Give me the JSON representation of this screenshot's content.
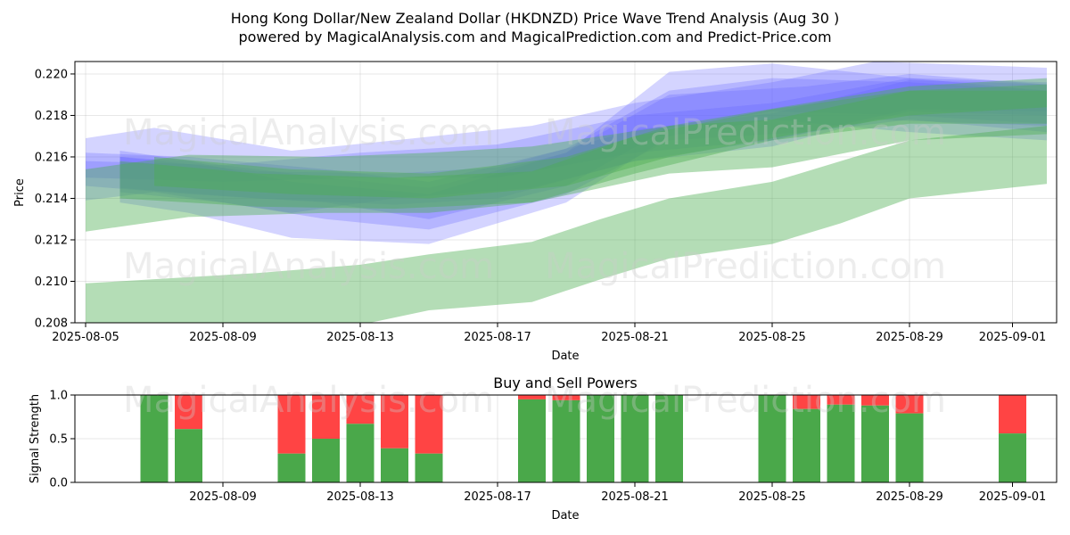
{
  "title_line1": "Hong Kong Dollar/New Zealand Dollar (HKDNZD) Price Wave Trend Analysis (Aug 30 )",
  "title_line2": "powered by MagicalAnalysis.com and MagicalPrediction.com and Predict-Price.com",
  "watermarks": [
    "MagicalAnalysis.com",
    "MagicalPrediction.com"
  ],
  "colors": {
    "blue": "#6666ff",
    "green": "#4caf50",
    "buy": "#4aa84a",
    "sell": "#ff4444"
  },
  "chart_data": [
    {
      "type": "area",
      "title": "",
      "xlabel": "Date",
      "ylabel": "Price",
      "x_ticks": [
        "2025-08-05",
        "2025-08-09",
        "2025-08-13",
        "2025-08-17",
        "2025-08-21",
        "2025-08-25",
        "2025-08-29",
        "2025-09-01"
      ],
      "y_ticks": [
        "0.208",
        "0.210",
        "0.212",
        "0.214",
        "0.216",
        "0.218",
        "0.220"
      ],
      "xlim": [
        "2025-08-05",
        "2025-09-02"
      ],
      "ylim": [
        0.208,
        0.2206
      ],
      "grid": true,
      "bands": [
        {
          "color": "blue",
          "points": [
            [
              "2025-08-05",
              0.2139,
              0.2169
            ],
            [
              "2025-08-07",
              0.2143,
              0.2174
            ],
            [
              "2025-08-11",
              0.2133,
              0.2163
            ],
            [
              "2025-08-14",
              0.214,
              0.2168
            ],
            [
              "2025-08-18",
              0.2145,
              0.2175
            ],
            [
              "2025-08-21",
              0.2158,
              0.2186
            ],
            [
              "2025-08-25",
              0.2168,
              0.2196
            ],
            [
              "2025-08-28",
              0.2178,
              0.2206
            ],
            [
              "2025-09-02",
              0.2175,
              0.2203
            ]
          ]
        },
        {
          "color": "blue",
          "points": [
            [
              "2025-08-06",
              0.2138,
              0.216
            ],
            [
              "2025-08-08",
              0.2133,
              0.2158
            ],
            [
              "2025-08-11",
              0.2121,
              0.2148
            ],
            [
              "2025-08-15",
              0.2118,
              0.2142
            ],
            [
              "2025-08-19",
              0.2138,
              0.2162
            ],
            [
              "2025-08-22",
              0.217,
              0.2201
            ],
            [
              "2025-08-25",
              0.2178,
              0.2205
            ],
            [
              "2025-08-29",
              0.2172,
              0.2198
            ],
            [
              "2025-09-02",
              0.2168,
              0.2192
            ]
          ]
        },
        {
          "color": "blue",
          "points": [
            [
              "2025-08-06",
              0.2143,
              0.2163
            ],
            [
              "2025-08-09",
              0.2138,
              0.2156
            ],
            [
              "2025-08-12",
              0.213,
              0.215
            ],
            [
              "2025-08-15",
              0.2125,
              0.2145
            ],
            [
              "2025-08-19",
              0.2142,
              0.2162
            ],
            [
              "2025-08-22",
              0.2168,
              0.219
            ],
            [
              "2025-08-26",
              0.2172,
              0.2194
            ],
            [
              "2025-08-29",
              0.2178,
              0.22
            ],
            [
              "2025-09-02",
              0.2172,
              0.2195
            ]
          ]
        },
        {
          "color": "blue",
          "points": [
            [
              "2025-08-05",
              0.2146,
              0.2162
            ],
            [
              "2025-08-08",
              0.2142,
              0.216
            ],
            [
              "2025-08-12",
              0.2138,
              0.2154
            ],
            [
              "2025-08-15",
              0.213,
              0.2148
            ],
            [
              "2025-08-19",
              0.2146,
              0.2164
            ],
            [
              "2025-08-22",
              0.2174,
              0.2192
            ],
            [
              "2025-08-25",
              0.2182,
              0.2198
            ],
            [
              "2025-08-29",
              0.218,
              0.2196
            ],
            [
              "2025-09-02",
              0.2176,
              0.2192
            ]
          ]
        },
        {
          "color": "blue",
          "points": [
            [
              "2025-08-06",
              0.2145,
              0.216
            ],
            [
              "2025-08-10",
              0.214,
              0.2153
            ],
            [
              "2025-08-14",
              0.2137,
              0.2152
            ],
            [
              "2025-08-17",
              0.214,
              0.2155
            ],
            [
              "2025-08-21",
              0.2158,
              0.2173
            ],
            [
              "2025-08-25",
              0.2165,
              0.2181
            ],
            [
              "2025-08-29",
              0.2182,
              0.2197
            ],
            [
              "2025-09-02",
              0.218,
              0.2195
            ]
          ]
        },
        {
          "color": "blue",
          "points": [
            [
              "2025-08-05",
              0.215,
              0.2158
            ],
            [
              "2025-08-09",
              0.2148,
              0.2156
            ],
            [
              "2025-08-13",
              0.215,
              0.2162
            ],
            [
              "2025-08-17",
              0.215,
              0.2166
            ],
            [
              "2025-08-21",
              0.2162,
              0.218
            ],
            [
              "2025-08-25",
              0.2168,
              0.2186
            ],
            [
              "2025-08-29",
              0.2183,
              0.2198
            ],
            [
              "2025-09-02",
              0.2182,
              0.2196
            ]
          ]
        },
        {
          "color": "green",
          "points": [
            [
              "2025-08-05",
              0.2124,
              0.2154
            ],
            [
              "2025-08-08",
              0.2131,
              0.2161
            ],
            [
              "2025-08-12",
              0.2133,
              0.216
            ],
            [
              "2025-08-15",
              0.2133,
              0.2162
            ],
            [
              "2025-08-18",
              0.2138,
              0.2165
            ],
            [
              "2025-08-22",
              0.2152,
              0.2175
            ],
            [
              "2025-08-25",
              0.2155,
              0.2178
            ],
            [
              "2025-08-29",
              0.2168,
              0.2192
            ],
            [
              "2025-09-02",
              0.2171,
              0.2195
            ]
          ]
        },
        {
          "color": "green",
          "points": [
            [
              "2025-08-05",
              0.2074,
              0.2099
            ],
            [
              "2025-08-10",
              0.2074,
              0.2104
            ],
            [
              "2025-08-13",
              0.2079,
              0.2108
            ],
            [
              "2025-08-15",
              0.2086,
              0.2113
            ],
            [
              "2025-08-18",
              0.209,
              0.2119
            ],
            [
              "2025-08-20",
              0.2101,
              0.213
            ],
            [
              "2025-08-22",
              0.2111,
              0.214
            ],
            [
              "2025-08-25",
              0.2118,
              0.2148
            ],
            [
              "2025-08-27",
              0.2128,
              0.2158
            ],
            [
              "2025-08-29",
              0.214,
              0.2168
            ],
            [
              "2025-09-02",
              0.2147,
              0.2175
            ]
          ]
        },
        {
          "color": "green",
          "points": [
            [
              "2025-08-06",
              0.214,
              0.2158
            ],
            [
              "2025-08-10",
              0.2136,
              0.2152
            ],
            [
              "2025-08-14",
              0.2135,
              0.215
            ],
            [
              "2025-08-18",
              0.2138,
              0.2153
            ],
            [
              "2025-08-21",
              0.2152,
              0.217
            ],
            [
              "2025-08-25",
              0.2168,
              0.2183
            ],
            [
              "2025-08-29",
              0.2176,
              0.2192
            ],
            [
              "2025-09-02",
              0.2176,
              0.2192
            ]
          ]
        },
        {
          "color": "green",
          "points": [
            [
              "2025-08-07",
              0.2146,
              0.216
            ],
            [
              "2025-08-11",
              0.2142,
              0.2154
            ],
            [
              "2025-08-15",
              0.214,
              0.2152
            ],
            [
              "2025-08-19",
              0.2146,
              0.216
            ],
            [
              "2025-08-22",
              0.216,
              0.2175
            ],
            [
              "2025-08-26",
              0.2172,
              0.2186
            ],
            [
              "2025-08-29",
              0.218,
              0.2194
            ],
            [
              "2025-09-02",
              0.2184,
              0.2198
            ]
          ]
        }
      ]
    },
    {
      "type": "bar",
      "title": "Buy and Sell Powers",
      "xlabel": "Date",
      "ylabel": "Signal Strength",
      "x_ticks": [
        "2025-08-09",
        "2025-08-13",
        "2025-08-17",
        "2025-08-21",
        "2025-08-25",
        "2025-08-29",
        "2025-09-01"
      ],
      "y_ticks": [
        "0.0",
        "0.5",
        "1.0"
      ],
      "ylim": [
        0,
        1
      ],
      "series": [
        {
          "name": "Buy"
        },
        {
          "name": "Sell"
        }
      ],
      "dates": [
        "2025-08-07",
        "2025-08-08",
        "2025-08-11",
        "2025-08-12",
        "2025-08-13",
        "2025-08-14",
        "2025-08-15",
        "2025-08-18",
        "2025-08-19",
        "2025-08-20",
        "2025-08-21",
        "2025-08-22",
        "2025-08-25",
        "2025-08-26",
        "2025-08-27",
        "2025-08-28",
        "2025-08-29",
        "2025-09-01"
      ],
      "buy": [
        1.0,
        0.61,
        0.33,
        0.5,
        0.67,
        0.39,
        0.33,
        0.95,
        0.94,
        1.0,
        1.0,
        1.0,
        1.0,
        0.84,
        0.89,
        0.88,
        0.79,
        0.56
      ]
    }
  ]
}
